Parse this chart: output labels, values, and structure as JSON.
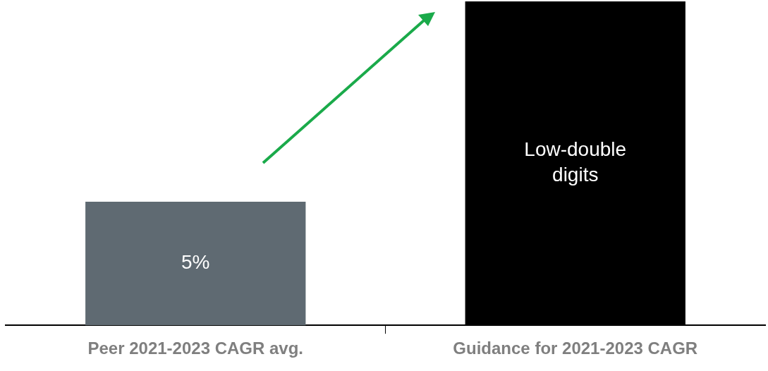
{
  "chart_data": {
    "type": "bar",
    "categories": [
      "Peer 2021-2023 CAGR avg.",
      "Guidance for 2021-2023 CAGR"
    ],
    "values": [
      5,
      13.1
    ],
    "colors": [
      "#5f6a72",
      "#000000"
    ],
    "value_labels": [
      "5%",
      "Low-double digits"
    ],
    "ylim": [
      0,
      13.1
    ],
    "tick_labels": "x",
    "grid": false,
    "legend": false
  }
}
